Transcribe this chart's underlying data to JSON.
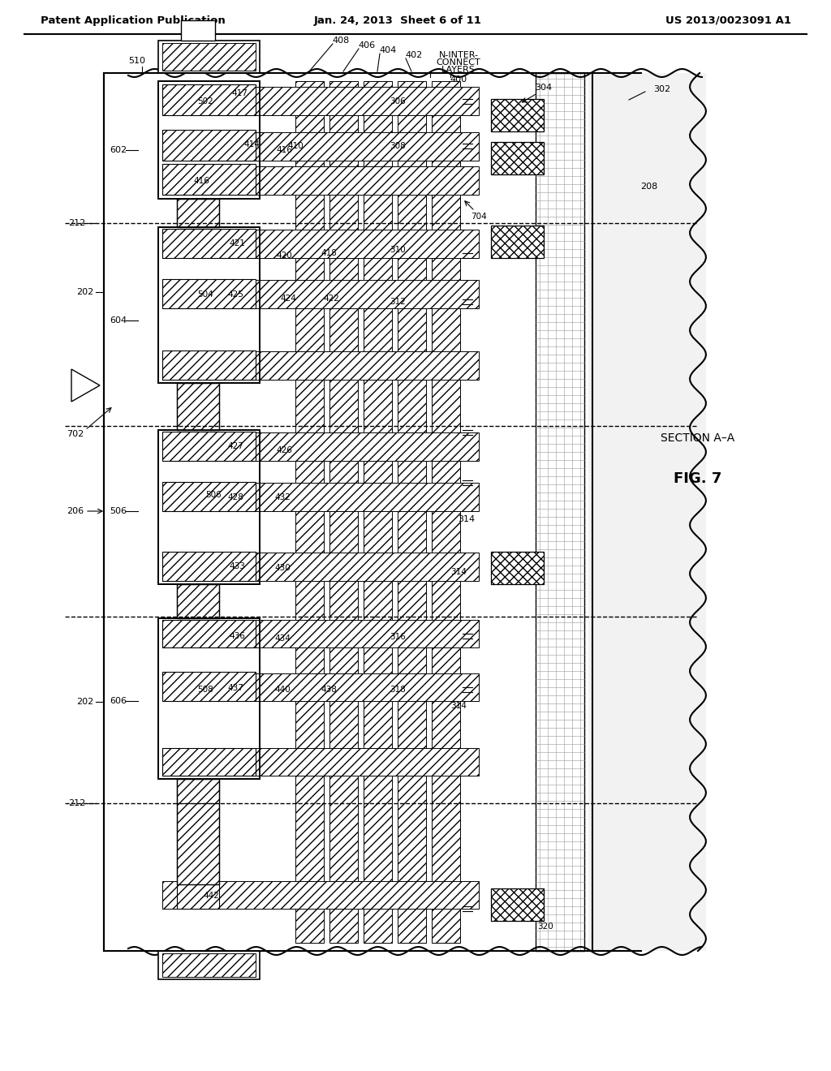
{
  "title_left": "Patent Application Publication",
  "title_center": "Jan. 24, 2013  Sheet 6 of 11",
  "title_right": "US 2013/0023091 A1",
  "fig_label": "FIG. 7",
  "section_label": "SECTION A–A",
  "bg_color": "#ffffff"
}
